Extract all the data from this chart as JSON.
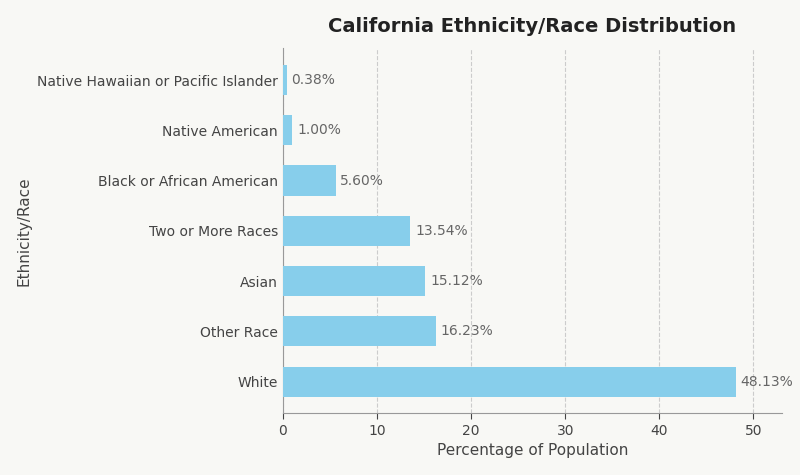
{
  "title": "California Ethnicity/Race Distribution",
  "xlabel": "Percentage of Population",
  "ylabel": "Ethnicity/Race",
  "categories": [
    "White",
    "Other Race",
    "Asian",
    "Two or More Races",
    "Black or African American",
    "Native American",
    "Native Hawaiian or Pacific Islander"
  ],
  "values": [
    48.13,
    16.23,
    15.12,
    13.54,
    5.6,
    1.0,
    0.38
  ],
  "labels": [
    "48.13%",
    "16.23%",
    "15.12%",
    "13.54%",
    "5.60%",
    "1.00%",
    "0.38%"
  ],
  "bar_color": "#87CEEB",
  "background_color": "#f8f8f5",
  "xlim": [
    0,
    53
  ],
  "xticks": [
    0,
    10,
    20,
    30,
    40,
    50
  ],
  "title_fontsize": 14,
  "label_fontsize": 11,
  "tick_fontsize": 10,
  "annotation_fontsize": 10,
  "grid_color": "#cccccc",
  "bar_height": 0.6
}
